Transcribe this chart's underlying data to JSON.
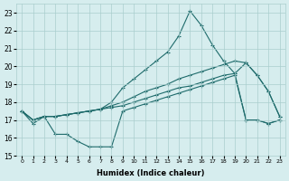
{
  "xlabel": "Humidex (Indice chaleur)",
  "bg_color": "#d6edee",
  "grid_color": "#aacece",
  "line_color": "#1e6b6b",
  "xlim": [
    -0.5,
    23.5
  ],
  "ylim": [
    15.0,
    23.5
  ],
  "yticks": [
    15,
    16,
    17,
    18,
    19,
    20,
    21,
    22,
    23
  ],
  "xticks": [
    0,
    1,
    2,
    3,
    4,
    5,
    6,
    7,
    8,
    9,
    10,
    11,
    12,
    13,
    14,
    15,
    16,
    17,
    18,
    19,
    20,
    21,
    22,
    23
  ],
  "line_peak_x": [
    0,
    1,
    2,
    3,
    4,
    5,
    6,
    7,
    8,
    9,
    10,
    11,
    12,
    13,
    14,
    15,
    16,
    17,
    18,
    19,
    20,
    21,
    22,
    23
  ],
  "line_peak_y": [
    17.5,
    17.0,
    17.2,
    17.2,
    17.3,
    17.4,
    17.5,
    17.6,
    18.0,
    18.8,
    19.3,
    19.8,
    20.3,
    20.8,
    21.7,
    23.1,
    22.3,
    21.2,
    20.3,
    19.6,
    20.2,
    19.5,
    18.6,
    17.2
  ],
  "line_upper_x": [
    0,
    1,
    2,
    3,
    4,
    5,
    6,
    7,
    8,
    9,
    10,
    11,
    12,
    13,
    14,
    15,
    16,
    17,
    18,
    19,
    20,
    21,
    22,
    23
  ],
  "line_upper_y": [
    17.5,
    17.0,
    17.2,
    17.2,
    17.3,
    17.4,
    17.5,
    17.6,
    17.8,
    18.0,
    18.3,
    18.6,
    18.8,
    19.0,
    19.3,
    19.5,
    19.7,
    19.9,
    20.1,
    20.3,
    20.2,
    19.5,
    18.6,
    17.2
  ],
  "line_lower_x": [
    0,
    1,
    2,
    3,
    4,
    5,
    6,
    7,
    8,
    9,
    10,
    11,
    12,
    13,
    14,
    15,
    16,
    17,
    18,
    19,
    20,
    21,
    22,
    23
  ],
  "line_lower_y": [
    17.5,
    17.0,
    17.2,
    17.2,
    17.3,
    17.4,
    17.5,
    17.6,
    17.7,
    17.8,
    18.0,
    18.2,
    18.4,
    18.6,
    18.8,
    18.9,
    19.1,
    19.3,
    19.5,
    19.6,
    17.0,
    17.0,
    16.8,
    17.0
  ],
  "line_zigzag_x": [
    0,
    1,
    2,
    3,
    4,
    5,
    6,
    7,
    8,
    9,
    10,
    11,
    12,
    13,
    14,
    15,
    16,
    17,
    18,
    19,
    20,
    21,
    22,
    23
  ],
  "line_zigzag_y": [
    17.5,
    16.8,
    17.2,
    16.2,
    16.2,
    15.8,
    15.5,
    15.5,
    15.5,
    17.5,
    17.7,
    17.9,
    18.1,
    18.3,
    18.5,
    18.7,
    18.9,
    19.1,
    19.3,
    19.5,
    17.0,
    17.0,
    16.8,
    17.0
  ]
}
